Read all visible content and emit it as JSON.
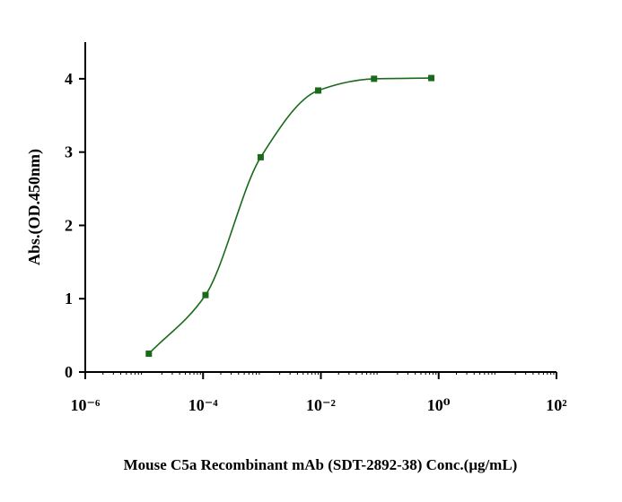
{
  "chart_data": {
    "type": "scatter",
    "x_label": "Mouse C5a Recombinant mAb (SDT-2892-38) Conc.(μg/mL)",
    "y_label": "Abs.(OD.450nm)",
    "x_scale": "log",
    "xlim": [
      1e-06,
      100
    ],
    "xticks": [
      {
        "value": 1e-06,
        "label": "10⁻⁶"
      },
      {
        "value": 0.0001,
        "label": "10⁻⁴"
      },
      {
        "value": 0.01,
        "label": "10⁻²"
      },
      {
        "value": 1,
        "label": "10⁰"
      },
      {
        "value": 100,
        "label": "10²"
      }
    ],
    "ylim": [
      0,
      4.5
    ],
    "yticks": [
      0,
      1,
      2,
      3,
      4
    ],
    "series": [
      {
        "name": "Abs",
        "color": "#1b6a1b",
        "x": [
          1.2e-05,
          0.00011,
          0.00095,
          0.009,
          0.08,
          0.75
        ],
        "values": [
          0.25,
          1.05,
          2.93,
          3.84,
          4.0,
          4.01
        ]
      }
    ]
  }
}
